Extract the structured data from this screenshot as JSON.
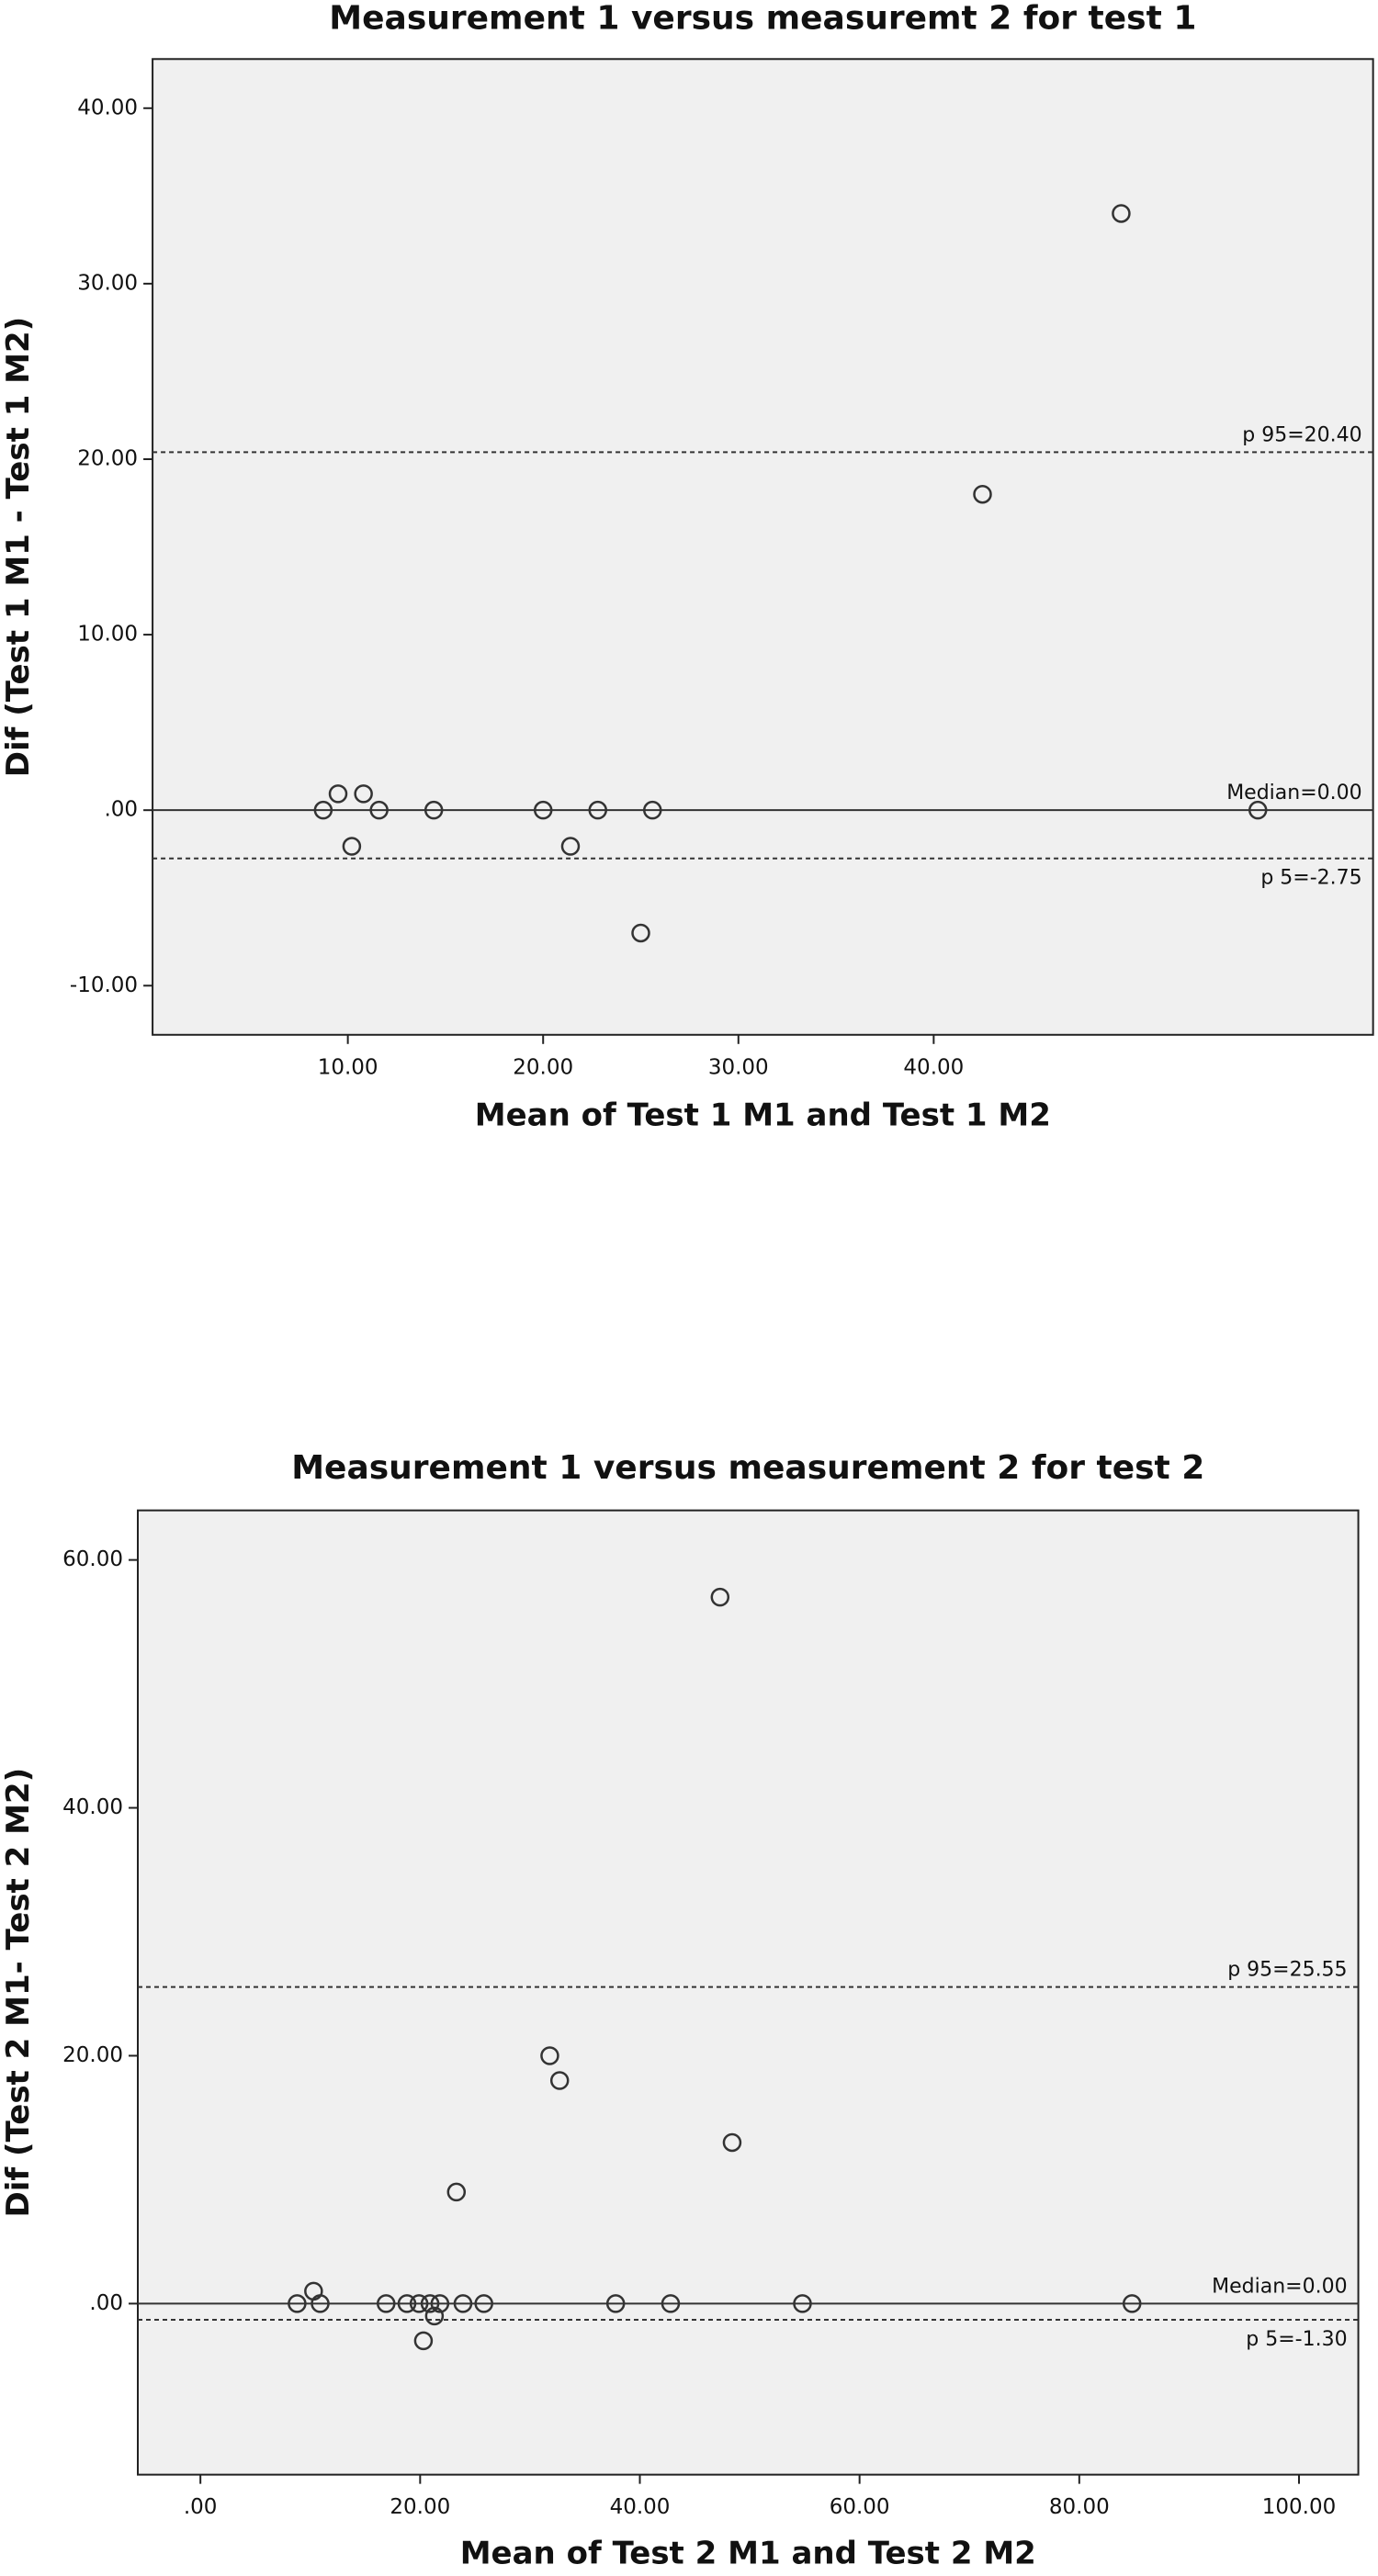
{
  "chart_data": [
    {
      "type": "scatter",
      "title": "Measurement 1 versus measuremt 2 for test 1",
      "x_label": "Mean of Test 1 M1 and Test 1 M2",
      "y_label": "Dif (Test 1 M1 - Test 1 M2)",
      "x": [
        8.74,
        9.5,
        10.2,
        10.8,
        11.6,
        14.4,
        20.0,
        22.8,
        21.4,
        25.6,
        25.0,
        42.5,
        49.6,
        56.6
      ],
      "values": [
        0,
        0.93,
        -2.06,
        0.93,
        0,
        0,
        0,
        0,
        -2.06,
        0,
        -7,
        18,
        34,
        0
      ],
      "xlim": [
        0,
        62.5
      ],
      "ylim": [
        -12.8,
        42.8
      ],
      "xticks": [
        {
          "value": 10,
          "label": "10.00"
        },
        {
          "value": 20,
          "label": "20.00"
        },
        {
          "value": 30,
          "label": "30.00"
        },
        {
          "value": 40,
          "label": "40.00"
        }
      ],
      "yticks": [
        {
          "value": -10,
          "label": "-10.00"
        },
        {
          "value": 0,
          "label": ".00"
        },
        {
          "value": 10,
          "label": "10.00"
        },
        {
          "value": 20,
          "label": "20.00"
        },
        {
          "value": 30,
          "label": "30.00"
        },
        {
          "value": 40,
          "label": "40.00"
        }
      ],
      "reference_lines": [
        {
          "value": 20.4,
          "label": "p 95=20.40",
          "style": "dashed"
        },
        {
          "value": 0,
          "label": "Median=0.00",
          "style": "solid"
        },
        {
          "value": -2.75,
          "label": "p 5=-2.75",
          "style": "dashed"
        }
      ],
      "marker_color": "#333333",
      "background": "#f0f0f0"
    },
    {
      "type": "scatter",
      "title": "Measurement 1 versus measurement 2 for test 2",
      "x_label": "Mean of Test 2 M1 and Test 2 M2",
      "y_label": "Dif (Test 2 M1- Test 2 M2)",
      "x": [
        8.8,
        10.3,
        10.9,
        16.9,
        18.8,
        19.9,
        20.9,
        21.8,
        20.3,
        21.3,
        23.3,
        23.9,
        25.8,
        31.8,
        32.7,
        37.8,
        42.8,
        47.3,
        48.4,
        54.8,
        84.8
      ],
      "values": [
        0,
        1,
        0,
        0,
        0,
        0,
        0,
        0,
        -3,
        -1,
        9,
        0,
        0,
        20,
        18,
        0,
        0,
        57,
        13,
        0,
        0
      ],
      "xlim": [
        -5.7,
        105.4
      ],
      "ylim": [
        -13.8,
        64
      ],
      "xticks": [
        {
          "value": 0,
          "label": ".00"
        },
        {
          "value": 20,
          "label": "20.00"
        },
        {
          "value": 40,
          "label": "40.00"
        },
        {
          "value": 60,
          "label": "60.00"
        },
        {
          "value": 80,
          "label": "80.00"
        },
        {
          "value": 100,
          "label": "100.00"
        }
      ],
      "yticks": [
        {
          "value": 0,
          "label": ".00"
        },
        {
          "value": 20,
          "label": "20.00"
        },
        {
          "value": 40,
          "label": "40.00"
        },
        {
          "value": 60,
          "label": "60.00"
        }
      ],
      "reference_lines": [
        {
          "value": 25.55,
          "label": "p 95=25.55",
          "style": "dashed"
        },
        {
          "value": 0,
          "label": "Median=0.00",
          "style": "solid"
        },
        {
          "value": -1.3,
          "label": "p 5=-1.30",
          "style": "dashed"
        }
      ],
      "marker_color": "#333333",
      "background": "#f0f0f0"
    }
  ]
}
